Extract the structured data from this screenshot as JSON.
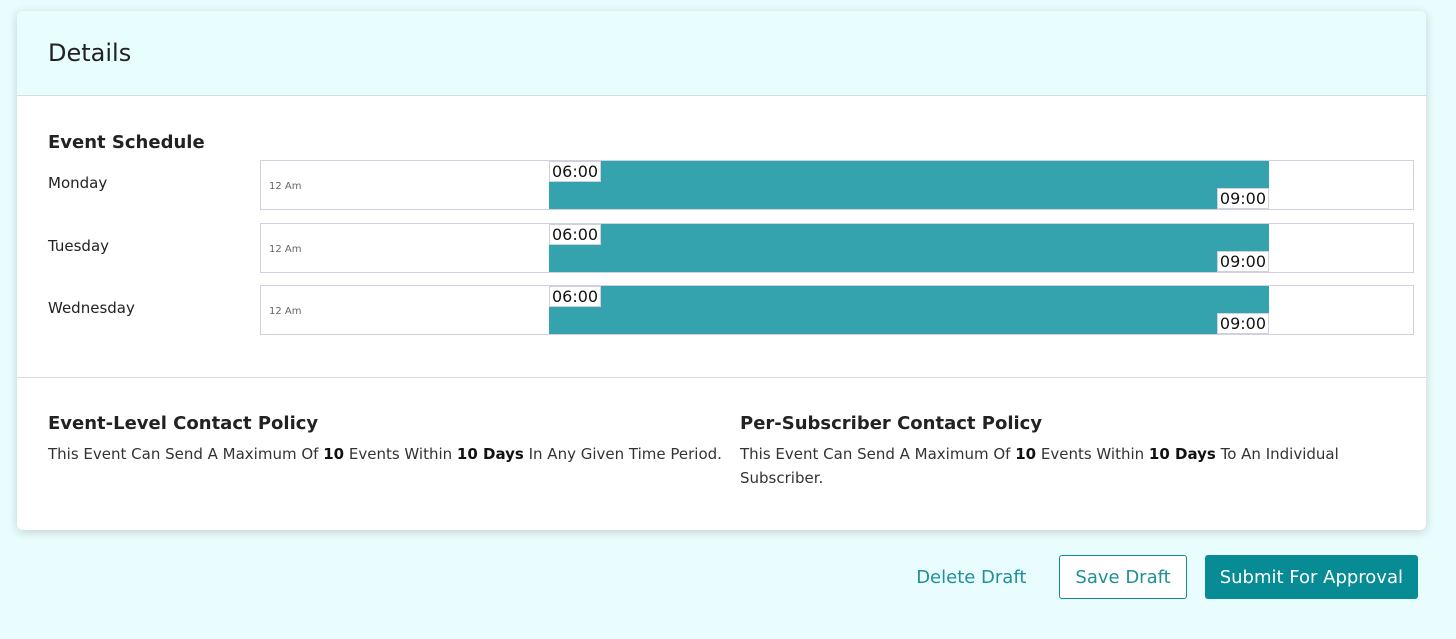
{
  "details": {
    "title": "Details"
  },
  "schedule": {
    "title": "Event Schedule",
    "bar_color": "#35a3ad",
    "rows": [
      {
        "day": "Monday",
        "tick": "12 Am",
        "start": "06:00",
        "end": "09:00",
        "fill_start_fraction": 0.25,
        "fill_end_fraction": 0.875
      },
      {
        "day": "Tuesday",
        "tick": "12 Am",
        "start": "06:00",
        "end": "09:00",
        "fill_start_fraction": 0.25,
        "fill_end_fraction": 0.875
      },
      {
        "day": "Wednesday",
        "tick": "12 Am",
        "start": "06:00",
        "end": "09:00",
        "fill_start_fraction": 0.25,
        "fill_end_fraction": 0.875
      }
    ]
  },
  "policies": {
    "event_level": {
      "title": "Event-Level Contact Policy",
      "p1": "This Event Can Send A Maximum Of ",
      "count": "10",
      "p2": " Events Within ",
      "period": "10 Days",
      "p3": " In Any Given Time Period."
    },
    "per_subscriber": {
      "title": "Per-Subscriber Contact Policy",
      "p1": "This Event Can Send A Maximum Of ",
      "count": "10",
      "p2": " Events Within ",
      "period": "10 Days",
      "p3": " To An Individual Subscriber."
    }
  },
  "actions": {
    "delete": "Delete Draft",
    "save": "Save Draft",
    "submit": "Submit For Approval"
  },
  "colors": {
    "accent": "#078b95",
    "header_bg": "#e8fdfe",
    "page_bg": "#eafdfe"
  }
}
